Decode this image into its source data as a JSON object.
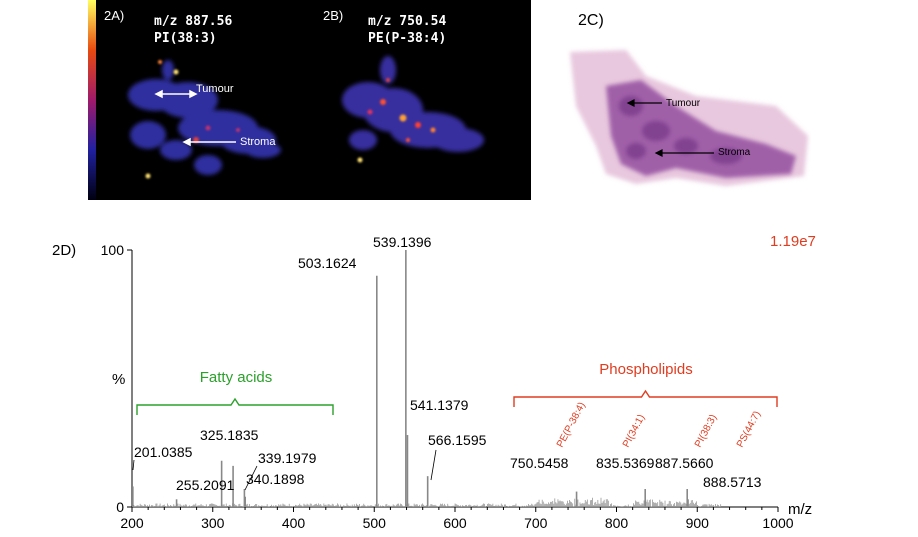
{
  "panels": {
    "a": {
      "label": "2A)",
      "mz": "m/z 887.56",
      "lipid": "PI(38:3)",
      "annotations": [
        "Tumour",
        "Stroma"
      ]
    },
    "b": {
      "label": "2B)",
      "mz": "m/z 750.54",
      "lipid": "PE(P-38:4)"
    },
    "c": {
      "label": "2C)",
      "annotations": [
        "Tumour",
        "Stroma"
      ]
    },
    "d": {
      "label": "2D)",
      "intensity": "1.19e7",
      "group_fatty": "Fatty acids",
      "group_phospho": "Phospholipids",
      "phospho_species": [
        "PE(P-38:4)",
        "PI(34:1)",
        "PI(38:3)",
        "PS(44:7)"
      ]
    }
  },
  "colors": {
    "fatty": "#2ca02c",
    "phospho": "#e03c20",
    "intensity": "#e03c20",
    "peak": "#888888"
  },
  "chart_data": {
    "type": "bar",
    "title": "",
    "xlabel": "m/z",
    "ylabel": "%",
    "xlim": [
      200,
      1000
    ],
    "ylim": [
      0,
      100
    ],
    "xticks": [
      200,
      300,
      400,
      500,
      600,
      700,
      800,
      900,
      1000
    ],
    "yticks": [
      0,
      100
    ],
    "peaks": [
      {
        "mz": 201.0385,
        "rel": 8,
        "label": "201.0385"
      },
      {
        "mz": 255.2091,
        "rel": 3,
        "label": "255.2091"
      },
      {
        "mz": 311.0,
        "rel": 18
      },
      {
        "mz": 325.1835,
        "rel": 16,
        "label": "325.1835"
      },
      {
        "mz": 339.1979,
        "rel": 7,
        "label": "339.1979"
      },
      {
        "mz": 340.1898,
        "rel": 4,
        "label": "340.1898"
      },
      {
        "mz": 503.1624,
        "rel": 90,
        "label": "503.1624"
      },
      {
        "mz": 539.1396,
        "rel": 100,
        "label": "539.1396"
      },
      {
        "mz": 541.1379,
        "rel": 28,
        "label": "541.1379"
      },
      {
        "mz": 566.1595,
        "rel": 12,
        "label": "566.1595"
      },
      {
        "mz": 750.5458,
        "rel": 6,
        "label": "750.5458"
      },
      {
        "mz": 835.5369,
        "rel": 7,
        "label": "835.5369"
      },
      {
        "mz": 887.566,
        "rel": 7,
        "label": "887.5660"
      },
      {
        "mz": 888.5713,
        "rel": 3,
        "label": "888.5713"
      }
    ]
  }
}
